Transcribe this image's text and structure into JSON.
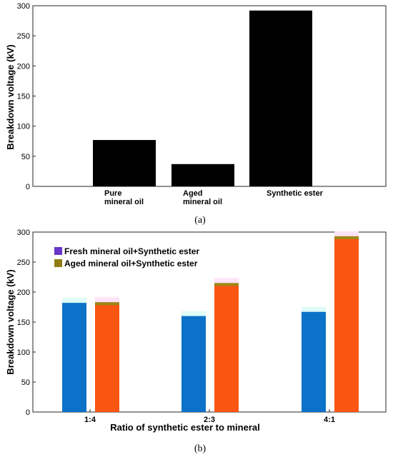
{
  "chart_data": [
    {
      "type": "bar",
      "caption": "(a)",
      "ylabel": "Breakdown voltage (kV)",
      "ylim": [
        0,
        300
      ],
      "yticks": [
        0,
        50,
        100,
        150,
        200,
        250,
        300
      ],
      "categories": [
        {
          "lines": [
            "Pure",
            "mineral oil"
          ]
        },
        {
          "lines": [
            "Aged",
            "mineral oil"
          ]
        },
        {
          "lines": [
            "Synthetic ester"
          ]
        }
      ],
      "values": [
        77,
        37,
        292
      ],
      "bar_color": "#000000"
    },
    {
      "type": "bar",
      "caption": "(b)",
      "ylabel": "Breakdown voltage (kV)",
      "xlabel": "Ratio of synthetic ester to mineral",
      "ylim": [
        0,
        300
      ],
      "yticks": [
        0,
        50,
        100,
        150,
        200,
        250,
        300
      ],
      "categories": [
        "1:4",
        "2:3",
        "4:1"
      ],
      "legend_position": "top-left",
      "series": [
        {
          "name": "Fresh mineral oil+Synthetic ester",
          "legend_color": "#6a35c8",
          "bar_color": "#0a72c8",
          "values": [
            182,
            160,
            167
          ]
        },
        {
          "name": "Aged mineral oil+Synthetic ester",
          "legend_color": "#8f7d14",
          "bar_color": "#fa5512",
          "cap_color": "#9a8a16",
          "values": [
            183,
            215,
            293
          ]
        }
      ]
    }
  ]
}
